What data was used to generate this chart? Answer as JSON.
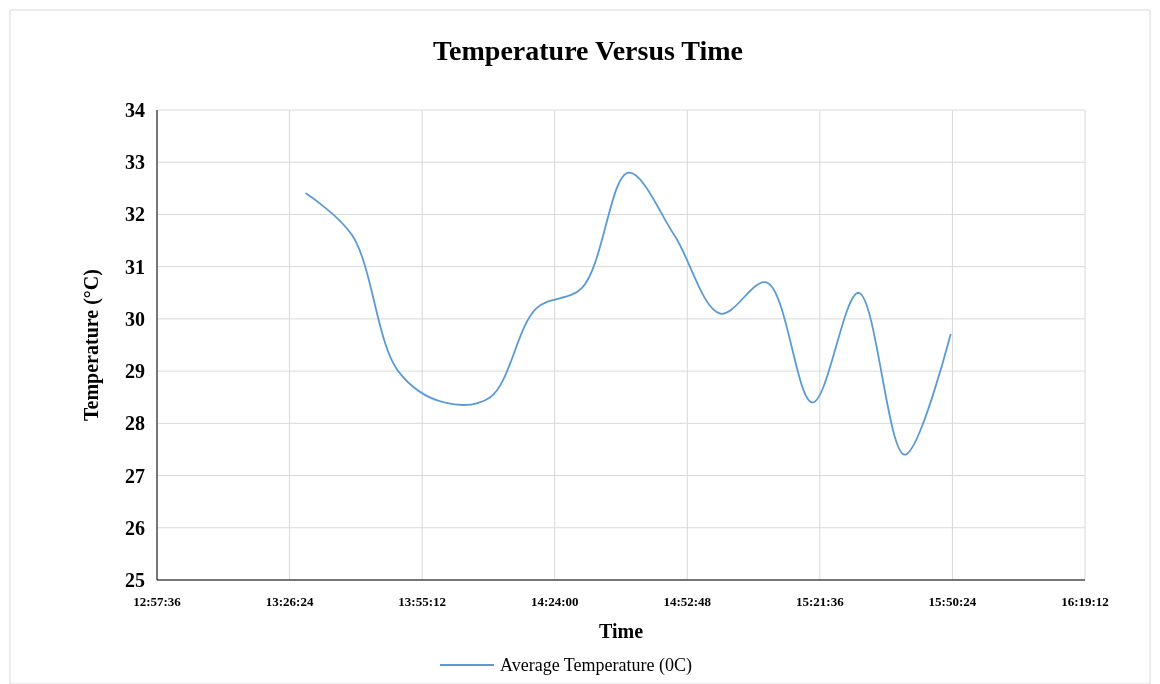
{
  "chart_data": {
    "type": "line",
    "title": "Temperature Versus Time",
    "xlabel": "Time",
    "ylabel": "Temperature (°C)",
    "x": [
      13.5,
      13.6667,
      13.8333,
      14,
      14.1667,
      14.3333,
      14.5,
      14.6667,
      14.8333,
      15,
      15.1667,
      15.3333,
      15.5,
      15.6667,
      15.8333
    ],
    "series": [
      {
        "name": "Average Temperature (0C)",
        "color": "#5b9bd5",
        "values": [
          32.4,
          31.6,
          29.0,
          28.4,
          28.5,
          30.2,
          30.6,
          32.8,
          31.6,
          30.1,
          30.7,
          28.4,
          30.5,
          27.4,
          29.7
        ]
      }
    ],
    "xlim": [
      12.96,
      16.32
    ],
    "xticks": [
      {
        "value": 12.96,
        "label": "12:57:36"
      },
      {
        "value": 13.44,
        "label": "13:26:24"
      },
      {
        "value": 13.92,
        "label": "13:55:12"
      },
      {
        "value": 14.4,
        "label": "14:24:00"
      },
      {
        "value": 14.88,
        "label": "14:52:48"
      },
      {
        "value": 15.36,
        "label": "15:21:36"
      },
      {
        "value": 15.84,
        "label": "15:50:24"
      },
      {
        "value": 16.32,
        "label": "16:19:12"
      }
    ],
    "ylim": [
      25,
      34
    ],
    "yticks": [
      25,
      26,
      27,
      28,
      29,
      30,
      31,
      32,
      33,
      34
    ],
    "grid": true,
    "legend": "bottom",
    "marker": "none",
    "line_style": "solid"
  }
}
